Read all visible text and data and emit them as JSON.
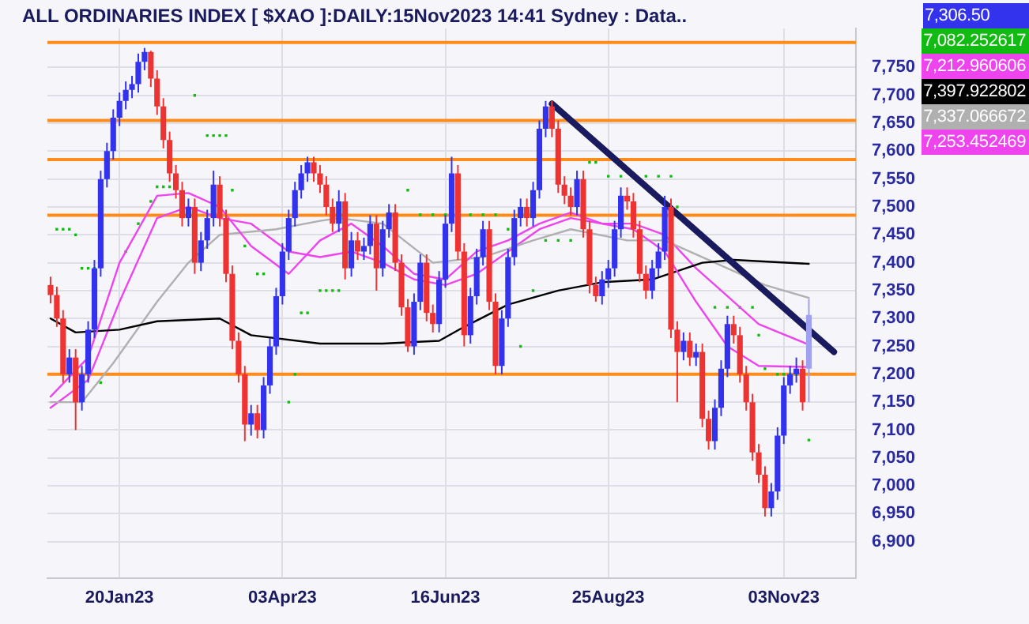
{
  "chart_data": {
    "type": "candlestick",
    "title": "ALL ORDINARIES INDEX [ $XAO ]:DAILY:15Nov2023 14:41 Sydney : Data..",
    "categories": [
      null,
      null,
      null,
      null,
      null,
      null,
      null,
      null,
      null,
      null,
      null,
      "20Jan23",
      null,
      null,
      null,
      null,
      null,
      null,
      null,
      null,
      null,
      null,
      null,
      null,
      null,
      null,
      null,
      null,
      null,
      null,
      null,
      null,
      null,
      null,
      null,
      null,
      null,
      "03Apr23",
      null,
      null,
      null,
      null,
      null,
      null,
      null,
      null,
      null,
      null,
      null,
      null,
      null,
      null,
      null,
      null,
      null,
      null,
      null,
      null,
      null,
      null,
      null,
      null,
      null,
      "16Jun23",
      null,
      null,
      null,
      null,
      null,
      null,
      null,
      null,
      null,
      null,
      null,
      null,
      null,
      null,
      null,
      null,
      null,
      null,
      null,
      null,
      null,
      null,
      null,
      null,
      null,
      "25Aug23",
      null,
      null,
      null,
      null,
      null,
      null,
      null,
      null,
      null,
      null,
      null,
      null,
      null,
      null,
      null,
      null,
      null,
      null,
      null,
      null,
      null,
      null,
      null,
      null,
      null,
      null,
      null,
      "03Nov23",
      null,
      null,
      null,
      null,
      null,
      null,
      null,
      null,
      null,
      null,
      null
    ],
    "series": [
      {
        "color": "#3333ee",
        "ohlc": [
          [
            7360,
            7375,
            7327,
            7342
          ],
          [
            7342,
            7357,
            7285,
            7300
          ],
          [
            7300,
            7315,
            7185,
            7200
          ],
          [
            7200,
            7245,
            7185,
            7230
          ],
          [
            7230,
            7245,
            7100,
            7150
          ],
          [
            7150,
            7215,
            7135,
            7200
          ],
          [
            7200,
            7295,
            7185,
            7280
          ],
          [
            7280,
            7405,
            7265,
            7390
          ],
          [
            7390,
            7565,
            7375,
            7550
          ],
          [
            7550,
            7615,
            7535,
            7600
          ],
          [
            7600,
            7675,
            7585,
            7660
          ],
          [
            7660,
            7705,
            7645,
            7690
          ],
          [
            7690,
            7725,
            7675,
            7710
          ],
          [
            7710,
            7735,
            7695,
            7720
          ],
          [
            7720,
            7775,
            7705,
            7760
          ],
          [
            7760,
            7785,
            7745,
            7778
          ],
          [
            7778,
            7780,
            7715,
            7730
          ],
          [
            7730,
            7745,
            7665,
            7680
          ],
          [
            7680,
            7695,
            7605,
            7620
          ],
          [
            7620,
            7635,
            7545,
            7560
          ],
          [
            7560,
            7575,
            7515,
            7530
          ],
          [
            7530,
            7545,
            7465,
            7480
          ],
          [
            7480,
            7515,
            7465,
            7500
          ],
          [
            7500,
            7515,
            7380,
            7400
          ],
          [
            7400,
            7455,
            7385,
            7440
          ],
          [
            7440,
            7495,
            7425,
            7480
          ],
          [
            7480,
            7565,
            7465,
            7540
          ],
          [
            7540,
            7555,
            7465,
            7480
          ],
          [
            7480,
            7495,
            7365,
            7380
          ],
          [
            7380,
            7395,
            7245,
            7260
          ],
          [
            7260,
            7275,
            7185,
            7200
          ],
          [
            7200,
            7215,
            7080,
            7110
          ],
          [
            7110,
            7145,
            7090,
            7130
          ],
          [
            7130,
            7145,
            7085,
            7100
          ],
          [
            7100,
            7195,
            7085,
            7180
          ],
          [
            7180,
            7265,
            7165,
            7250
          ],
          [
            7250,
            7355,
            7235,
            7340
          ],
          [
            7340,
            7435,
            7325,
            7420
          ],
          [
            7420,
            7495,
            7405,
            7480
          ],
          [
            7480,
            7545,
            7465,
            7530
          ],
          [
            7530,
            7575,
            7515,
            7560
          ],
          [
            7560,
            7590,
            7545,
            7580
          ],
          [
            7580,
            7590,
            7545,
            7560
          ],
          [
            7560,
            7575,
            7525,
            7540
          ],
          [
            7540,
            7555,
            7485,
            7500
          ],
          [
            7500,
            7515,
            7455,
            7470
          ],
          [
            7470,
            7530,
            7455,
            7510
          ],
          [
            7510,
            7525,
            7370,
            7390
          ],
          [
            7390,
            7455,
            7375,
            7440
          ],
          [
            7440,
            7455,
            7405,
            7420
          ],
          [
            7420,
            7445,
            7405,
            7430
          ],
          [
            7430,
            7485,
            7415,
            7470
          ],
          [
            7470,
            7485,
            7350,
            7390
          ],
          [
            7390,
            7475,
            7375,
            7460
          ],
          [
            7460,
            7505,
            7445,
            7490
          ],
          [
            7490,
            7505,
            7385,
            7400
          ],
          [
            7400,
            7415,
            7305,
            7320
          ],
          [
            7320,
            7335,
            7240,
            7250
          ],
          [
            7250,
            7345,
            7235,
            7330
          ],
          [
            7330,
            7415,
            7315,
            7400
          ],
          [
            7400,
            7415,
            7295,
            7310
          ],
          [
            7310,
            7325,
            7275,
            7290
          ],
          [
            7290,
            7385,
            7275,
            7370
          ],
          [
            7370,
            7485,
            7355,
            7470
          ],
          [
            7470,
            7590,
            7455,
            7560
          ],
          [
            7560,
            7575,
            7405,
            7420
          ],
          [
            7420,
            7435,
            7250,
            7270
          ],
          [
            7270,
            7355,
            7255,
            7340
          ],
          [
            7340,
            7425,
            7325,
            7410
          ],
          [
            7410,
            7475,
            7395,
            7460
          ],
          [
            7460,
            7475,
            7315,
            7330
          ],
          [
            7330,
            7345,
            7200,
            7215
          ],
          [
            7215,
            7315,
            7200,
            7300
          ],
          [
            7300,
            7425,
            7285,
            7410
          ],
          [
            7410,
            7495,
            7395,
            7480
          ],
          [
            7480,
            7515,
            7465,
            7500
          ],
          [
            7500,
            7515,
            7465,
            7480
          ],
          [
            7480,
            7545,
            7465,
            7530
          ],
          [
            7530,
            7655,
            7515,
            7640
          ],
          [
            7640,
            7690,
            7625,
            7680
          ],
          [
            7680,
            7690,
            7625,
            7640
          ],
          [
            7640,
            7655,
            7525,
            7540
          ],
          [
            7540,
            7555,
            7505,
            7520
          ],
          [
            7520,
            7535,
            7485,
            7500
          ],
          [
            7500,
            7565,
            7485,
            7550
          ],
          [
            7550,
            7565,
            7445,
            7460
          ],
          [
            7460,
            7475,
            7345,
            7360
          ],
          [
            7360,
            7375,
            7330,
            7340
          ],
          [
            7340,
            7385,
            7325,
            7370
          ],
          [
            7370,
            7405,
            7355,
            7390
          ],
          [
            7390,
            7475,
            7375,
            7460
          ],
          [
            7460,
            7535,
            7445,
            7520
          ],
          [
            7520,
            7535,
            7495,
            7510
          ],
          [
            7510,
            7525,
            7445,
            7460
          ],
          [
            7460,
            7475,
            7365,
            7380
          ],
          [
            7380,
            7395,
            7335,
            7350
          ],
          [
            7350,
            7405,
            7335,
            7390
          ],
          [
            7390,
            7435,
            7375,
            7420
          ],
          [
            7420,
            7520,
            7405,
            7500
          ],
          [
            7500,
            7515,
            7265,
            7280
          ],
          [
            7280,
            7295,
            7150,
            7240
          ],
          [
            7240,
            7275,
            7225,
            7260
          ],
          [
            7260,
            7275,
            7215,
            7230
          ],
          [
            7230,
            7255,
            7215,
            7240
          ],
          [
            7240,
            7255,
            7105,
            7120
          ],
          [
            7120,
            7135,
            7065,
            7080
          ],
          [
            7080,
            7155,
            7065,
            7140
          ],
          [
            7140,
            7225,
            7125,
            7210
          ],
          [
            7210,
            7305,
            7195,
            7290
          ],
          [
            7290,
            7305,
            7255,
            7270
          ],
          [
            7270,
            7285,
            7185,
            7200
          ],
          [
            7200,
            7215,
            7135,
            7150
          ],
          [
            7150,
            7165,
            7045,
            7060
          ],
          [
            7060,
            7075,
            7005,
            7020
          ],
          [
            7020,
            7035,
            6945,
            6960
          ],
          [
            6960,
            7005,
            6945,
            6990
          ],
          [
            6990,
            7105,
            6975,
            7090
          ],
          [
            7090,
            7195,
            7075,
            7180
          ],
          [
            7180,
            7215,
            7165,
            7200
          ],
          [
            7200,
            7230,
            7185,
            7210
          ],
          [
            7210,
            7225,
            7135,
            7150
          ],
          [
            7210,
            7335,
            7150,
            7306.5
          ],
          null,
          null,
          null,
          null,
          null,
          null,
          null
        ],
        "colors": [
          "#ee3333",
          "#ee3333",
          "#ee3333",
          "#3333ee",
          "#ee3333",
          "#3333ee",
          "#3333ee",
          "#3333ee",
          "#3333ee",
          "#3333ee",
          "#3333ee",
          "#3333ee",
          "#3333ee",
          "#3333ee",
          "#3333ee",
          "#3333ee",
          "#ee3333",
          "#ee3333",
          "#ee3333",
          "#ee3333",
          "#ee3333",
          "#ee3333",
          "#3333ee",
          "#ee3333",
          "#3333ee",
          "#3333ee",
          "#3333ee",
          "#ee3333",
          "#ee3333",
          "#ee3333",
          "#ee3333",
          "#ee3333",
          "#3333ee",
          "#ee3333",
          "#3333ee",
          "#3333ee",
          "#3333ee",
          "#3333ee",
          "#3333ee",
          "#3333ee",
          "#3333ee",
          "#3333ee",
          "#ee3333",
          "#ee3333",
          "#ee3333",
          "#ee3333",
          "#3333ee",
          "#ee3333",
          "#3333ee",
          "#ee3333",
          "#3333ee",
          "#3333ee",
          "#ee3333",
          "#3333ee",
          "#3333ee",
          "#ee3333",
          "#ee3333",
          "#ee3333",
          "#3333ee",
          "#3333ee",
          "#ee3333",
          "#ee3333",
          "#3333ee",
          "#3333ee",
          "#3333ee",
          "#ee3333",
          "#ee3333",
          "#3333ee",
          "#3333ee",
          "#3333ee",
          "#ee3333",
          "#ee3333",
          "#3333ee",
          "#3333ee",
          "#3333ee",
          "#3333ee",
          "#ee3333",
          "#3333ee",
          "#3333ee",
          "#3333ee",
          "#ee3333",
          "#ee3333",
          "#ee3333",
          "#ee3333",
          "#3333ee",
          "#ee3333",
          "#ee3333",
          "#ee3333",
          "#3333ee",
          "#3333ee",
          "#3333ee",
          "#3333ee",
          "#ee3333",
          "#ee3333",
          "#ee3333",
          "#ee3333",
          "#3333ee",
          "#3333ee",
          "#3333ee",
          "#ee3333",
          "#ee3333",
          "#3333ee",
          "#ee3333",
          "#3333ee",
          "#ee3333",
          "#ee3333",
          "#3333ee",
          "#3333ee",
          "#3333ee",
          "#ee3333",
          "#ee3333",
          "#ee3333",
          "#ee3333",
          "#ee3333",
          "#ee3333",
          "#3333ee",
          "#3333ee",
          "#3333ee",
          "#3333ee",
          "#3333ee",
          "#ee3333",
          "#a0a0f0",
          null,
          null,
          null,
          null,
          null,
          null,
          null
        ]
      },
      {
        "type": "scatter",
        "marker": "square",
        "color": "#11bb11",
        "values": [
          null,
          7460,
          7460,
          7460,
          7450,
          7390,
          7390,
          7390,
          7185,
          null,
          null,
          null,
          7420,
          null,
          7470,
          null,
          7510,
          7536,
          7536,
          7536,
          null,
          null,
          null,
          7700,
          null,
          7628,
          7628,
          7628,
          7628,
          7530,
          null,
          7430,
          null,
          7380,
          7380,
          null,
          null,
          null,
          7150,
          7200,
          7310,
          7310,
          null,
          7350,
          7350,
          7350,
          7350,
          null,
          null,
          null,
          null,
          null,
          null,
          null,
          null,
          null,
          null,
          7530,
          null,
          7486,
          null,
          7486,
          null,
          7486,
          null,
          null,
          null,
          7486,
          null,
          7486,
          null,
          7486,
          null,
          7460,
          null,
          7250,
          null,
          7350,
          null,
          7440,
          null,
          7440,
          null,
          7440,
          null,
          null,
          7580,
          7580,
          null,
          7555,
          null,
          7555,
          null,
          null,
          null,
          7555,
          null,
          7555,
          null,
          7555,
          7500,
          null,
          null,
          null,
          null,
          null,
          7320,
          null,
          7320,
          null,
          7320,
          null,
          7320,
          7270,
          7210,
          null,
          7200,
          7200,
          7200,
          7200,
          null,
          7082,
          null,
          null,
          null,
          null,
          null,
          null,
          null
        ]
      },
      {
        "type": "line",
        "color": "#ee44ee",
        "values": [
          7160,
          null,
          null,
          null,
          null,
          null,
          7230,
          null,
          null,
          null,
          null,
          7400,
          null,
          null,
          null,
          null,
          null,
          7520,
          null,
          null,
          null,
          null,
          7525,
          null,
          null,
          null,
          null,
          7500,
          null,
          null,
          null,
          null,
          7430,
          null,
          null,
          null,
          null,
          null,
          7380,
          null,
          null,
          null,
          null,
          7440,
          null,
          null,
          null,
          null,
          7470,
          null,
          null,
          null,
          null,
          7430,
          null,
          null,
          null,
          null,
          7380,
          null,
          null,
          null,
          null,
          7370,
          null,
          null,
          null,
          null,
          7420,
          null,
          null,
          null,
          null,
          7440,
          null,
          null,
          null,
          null,
          7470,
          null,
          null,
          null,
          null,
          7490,
          null,
          null,
          null,
          null,
          7470,
          null,
          null,
          null,
          null,
          7460,
          null,
          null,
          null,
          null,
          7420,
          null,
          null,
          null,
          null,
          7330,
          null,
          null,
          null,
          null,
          7250,
          null,
          null,
          null,
          null,
          7215,
          null,
          null,
          null,
          null,
          null,
          null,
          null,
          7213,
          null,
          null,
          null,
          null,
          null,
          null,
          null
        ]
      },
      {
        "type": "line",
        "color": "#000000",
        "values": [
          7300,
          null,
          null,
          null,
          7275,
          null,
          null,
          null,
          null,
          null,
          null,
          7280,
          null,
          null,
          null,
          null,
          null,
          7295,
          null,
          null,
          null,
          null,
          null,
          null,
          null,
          null,
          null,
          7300,
          null,
          null,
          null,
          null,
          7270,
          null,
          null,
          null,
          null,
          null,
          null,
          null,
          null,
          null,
          null,
          7255,
          null,
          null,
          null,
          null,
          null,
          null,
          null,
          null,
          null,
          7255,
          null,
          null,
          null,
          null,
          null,
          null,
          null,
          null,
          7260,
          null,
          null,
          null,
          7285,
          null,
          null,
          null,
          null,
          null,
          null,
          7325,
          null,
          null,
          null,
          null,
          null,
          null,
          null,
          7350,
          null,
          null,
          null,
          null,
          null,
          null,
          7365,
          null,
          null,
          null,
          null,
          null,
          null,
          null,
          7370,
          null,
          null,
          null,
          null,
          null,
          null,
          null,
          7400,
          null,
          null,
          null,
          null,
          7405,
          null,
          null,
          null,
          null,
          null,
          null,
          null,
          null,
          null,
          null,
          null,
          7398,
          null,
          null,
          null,
          null,
          null,
          null,
          null
        ]
      },
      {
        "type": "line",
        "color": "#b0b0b0",
        "values": [
          7150,
          null,
          null,
          null,
          null,
          7150,
          null,
          null,
          null,
          null,
          7220,
          null,
          null,
          null,
          null,
          null,
          null,
          7330,
          null,
          null,
          null,
          null,
          7400,
          null,
          null,
          null,
          null,
          7450,
          null,
          null,
          null,
          null,
          null,
          null,
          null,
          null,
          7460,
          null,
          null,
          null,
          null,
          null,
          null,
          7475,
          null,
          null,
          7480,
          null,
          null,
          null,
          null,
          null,
          null,
          7470,
          null,
          null,
          null,
          null,
          null,
          null,
          null,
          7400,
          null,
          null,
          null,
          null,
          null,
          null,
          null,
          7410,
          null,
          null,
          null,
          null,
          null,
          null,
          null,
          7440,
          null,
          null,
          null,
          null,
          null,
          7460,
          null,
          null,
          null,
          null,
          null,
          null,
          null,
          null,
          7440,
          null,
          null,
          null,
          null,
          null,
          7440,
          null,
          null,
          null,
          null,
          null,
          null,
          null,
          7400,
          null,
          null,
          null,
          null,
          null,
          null,
          null,
          7360,
          null,
          null,
          null,
          null,
          null,
          null,
          7337,
          null,
          null,
          null,
          null,
          null,
          null,
          null
        ]
      },
      {
        "type": "line",
        "color": "#ee44ee",
        "values": [
          7140,
          null,
          null,
          null,
          null,
          null,
          7190,
          null,
          null,
          null,
          null,
          7330,
          null,
          null,
          null,
          null,
          null,
          7480,
          null,
          null,
          null,
          null,
          7500,
          null,
          null,
          null,
          null,
          7480,
          null,
          null,
          null,
          null,
          7470,
          null,
          null,
          null,
          null,
          null,
          7420,
          null,
          null,
          null,
          null,
          7410,
          null,
          null,
          null,
          null,
          7420,
          null,
          null,
          null,
          null,
          7400,
          null,
          null,
          null,
          null,
          7370,
          null,
          null,
          null,
          null,
          7360,
          null,
          null,
          null,
          null,
          7380,
          null,
          null,
          null,
          null,
          7420,
          null,
          null,
          null,
          null,
          7460,
          null,
          null,
          null,
          null,
          7480,
          null,
          null,
          null,
          null,
          7470,
          null,
          null,
          null,
          null,
          7470,
          null,
          null,
          null,
          null,
          7450,
          null,
          null,
          null,
          null,
          7390,
          null,
          null,
          null,
          null,
          7340,
          null,
          null,
          null,
          null,
          7290,
          null,
          null,
          null,
          null,
          null,
          null,
          null,
          7253,
          null,
          null,
          null,
          null,
          null,
          null,
          null
        ]
      },
      {
        "type": "line",
        "color": "#1a1a5e",
        "values": [
          null,
          null,
          null,
          null,
          null,
          null,
          null,
          null,
          null,
          null,
          null,
          null,
          null,
          null,
          null,
          null,
          null,
          null,
          null,
          null,
          null,
          null,
          null,
          null,
          null,
          null,
          null,
          null,
          null,
          null,
          null,
          null,
          null,
          null,
          null,
          null,
          null,
          null,
          null,
          null,
          null,
          null,
          null,
          null,
          null,
          null,
          null,
          null,
          null,
          null,
          null,
          null,
          null,
          null,
          null,
          null,
          null,
          null,
          null,
          null,
          null,
          null,
          null,
          null,
          null,
          null,
          null,
          null,
          null,
          null,
          null,
          null,
          null,
          null,
          null,
          null,
          null,
          null,
          null,
          null,
          7685,
          null,
          null,
          null,
          null,
          null,
          null,
          null,
          null,
          null,
          null,
          null,
          null,
          null,
          null,
          null,
          null,
          null,
          null,
          null,
          null,
          null,
          null,
          null,
          null,
          null,
          null,
          null,
          null,
          null,
          null,
          null,
          null,
          null,
          null,
          null,
          null,
          null,
          null,
          null,
          null,
          null,
          null,
          null,
          null,
          7240,
          null,
          null,
          null
        ]
      }
    ],
    "ylim": [
      6835,
      7820
    ],
    "yticks": [
      {
        "value": 6900,
        "label": "6,900"
      },
      {
        "value": 6950,
        "label": "6,950"
      },
      {
        "value": 7000,
        "label": "7,000"
      },
      {
        "value": 7050,
        "label": "7,050"
      },
      {
        "value": 7100,
        "label": "7,100"
      },
      {
        "value": 7150,
        "label": "7,150"
      },
      {
        "value": 7200,
        "label": "7,200"
      },
      {
        "value": 7250,
        "label": "7,250"
      },
      {
        "value": 7300,
        "label": "7,300"
      },
      {
        "value": 7350,
        "label": "7,350"
      },
      {
        "value": 7400,
        "label": "7,400"
      },
      {
        "value": 7450,
        "label": "7,450"
      },
      {
        "value": 7500,
        "label": "7,500"
      },
      {
        "value": 7550,
        "label": "7,550"
      },
      {
        "value": 7600,
        "label": "7,600"
      },
      {
        "value": 7650,
        "label": "7,650"
      },
      {
        "value": 7700,
        "label": "7,700"
      },
      {
        "value": 7750,
        "label": "7,750"
      }
    ],
    "ref_lines": [
      {
        "axis": "y",
        "value": 7795,
        "color": "#ff8c1a"
      },
      {
        "axis": "y",
        "value": 7655,
        "color": "#ff8c1a"
      },
      {
        "axis": "y",
        "value": 7585,
        "color": "#ff8c1a"
      },
      {
        "axis": "y",
        "value": 7485,
        "color": "#ff8c1a"
      },
      {
        "axis": "y",
        "value": 7200,
        "color": "#ff8c1a"
      }
    ],
    "annotations": [
      "7,306.50",
      "7,082.252617",
      "7,212.960606",
      "7,397.922802",
      "7,337.066672",
      "7,253.452469"
    ],
    "grid": true,
    "legend": false
  }
}
